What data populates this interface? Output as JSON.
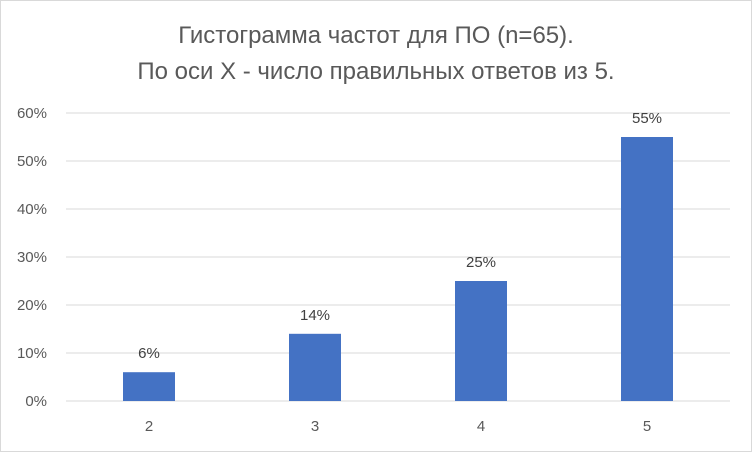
{
  "chart_data": {
    "type": "bar",
    "title_line1": "Гистограмма частот для ПО (n=65).",
    "title_line2": "По оси X - число правильных ответов из 5.",
    "categories": [
      "2",
      "3",
      "4",
      "5"
    ],
    "values": [
      6,
      14,
      25,
      55
    ],
    "data_labels": [
      "6%",
      "14%",
      "25%",
      "55%"
    ],
    "ylim": [
      0,
      60
    ],
    "yticks": [
      0,
      10,
      20,
      30,
      40,
      50,
      60
    ],
    "ytick_labels": [
      "0%",
      "10%",
      "20%",
      "30%",
      "40%",
      "50%",
      "60%"
    ],
    "grid": true,
    "bar_color": "#4472c4",
    "grid_color": "#d9d9d9"
  }
}
